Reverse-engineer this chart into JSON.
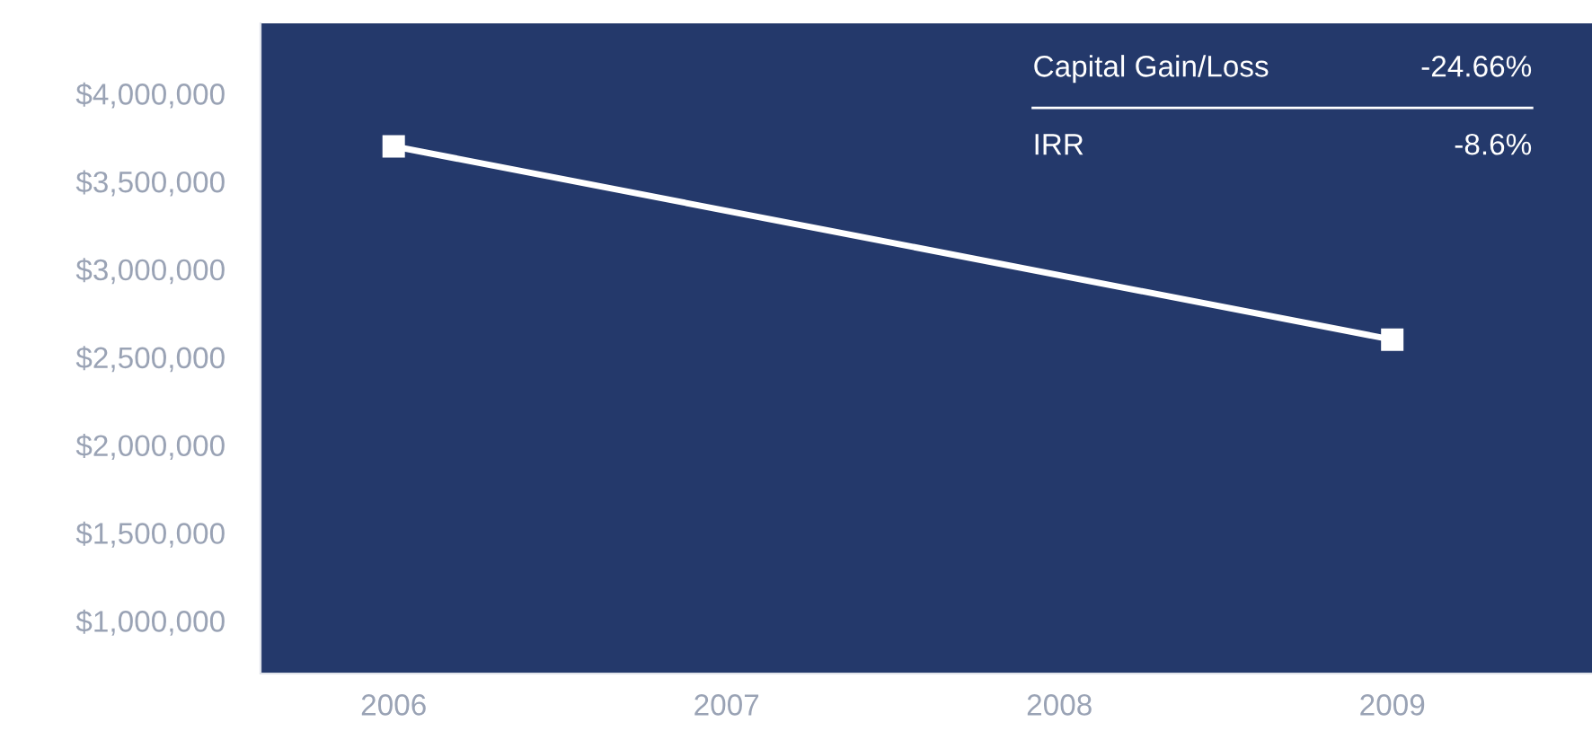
{
  "chart_data": {
    "type": "line",
    "categories": [
      "2006",
      "2007",
      "2008",
      "2009"
    ],
    "series": [
      {
        "color": "#ffffff",
        "values": [
          3700000,
          null,
          null,
          2600000
        ]
      }
    ],
    "ylim": [
      700000,
      4400000
    ],
    "yticks": [
      {
        "value": 1000000,
        "label": "$1,000,000"
      },
      {
        "value": 1500000,
        "label": "$1,500,000"
      },
      {
        "value": 2000000,
        "label": "$2,000,000"
      },
      {
        "value": 2500000,
        "label": "$2,500,000"
      },
      {
        "value": 3000000,
        "label": "$3,000,000"
      },
      {
        "value": 3500000,
        "label": "$3,500,000"
      },
      {
        "value": 4000000,
        "label": "$4,000,000"
      }
    ],
    "annotations": [
      "Capital Gain/Loss",
      "-24.66%",
      "IRR",
      "-8.6%"
    ],
    "marker": "square",
    "line_style": "solid",
    "grid": false,
    "legend": false
  }
}
